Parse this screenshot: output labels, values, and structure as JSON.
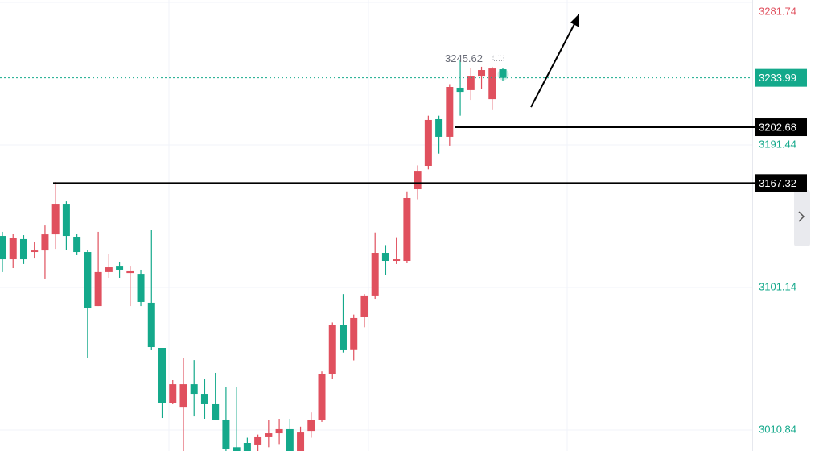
{
  "chart_data": {
    "type": "candlestick",
    "up_color": "#e0505e",
    "down_color": "#14a98b",
    "open": [
      3133.8,
      3119.0,
      3131.8,
      3123.6,
      3124.6,
      3134.8,
      3154.2,
      3133.3,
      3123.6,
      3089.4,
      3110.9,
      3114.9,
      3110.3,
      3109.8,
      3091.5,
      3062.9,
      3027.7,
      3025.6,
      3039.9,
      3033.8,
      3027.2,
      3017.5,
      3000.0,
      3002.7,
      3001.7,
      3006.8,
      3008.8,
      3011.4,
      2996.0,
      3010.3,
      3017.0,
      3046.1,
      3077.2,
      3062.0,
      3082.8,
      3096.1,
      3123.1,
      3118.0,
      3118.0,
      3163.4,
      3178.2,
      3207.8,
      3196.6,
      3227.7,
      3226.2,
      3235.3,
      3220.5,
      3239.4
    ],
    "high": [
      3136.4,
      3135.3,
      3134.3,
      3130.2,
      3140.4,
      3168.0,
      3155.7,
      3135.3,
      3125.1,
      3136.4,
      3122.1,
      3117.5,
      3114.9,
      3112.4,
      3137.4,
      3062.9,
      3042.5,
      3056.3,
      3055.2,
      3043.5,
      3047.1,
      3038.4,
      3038.4,
      3006.0,
      3008.0,
      3017.0,
      3018.0,
      3018.0,
      3013.0,
      3022.0,
      3048.0,
      3079.0,
      3097.0,
      3084.0,
      3097.0,
      3136.0,
      3128.0,
      3133.0,
      3162.0,
      3178.5,
      3210.0,
      3210.0,
      3230.0,
      3245.62,
      3240.0,
      3241.0,
      3241.0,
      3240.0
    ],
    "low": [
      3110.9,
      3113.4,
      3116.0,
      3120.0,
      3106.8,
      3125.6,
      3125.1,
      3121.6,
      3056.3,
      3089.4,
      3107.3,
      3107.3,
      3089.4,
      3089.4,
      3061.9,
      3018.5,
      3027.2,
      2997.6,
      3019.5,
      3018.0,
      3017.0,
      2995.0,
      2990.0,
      2990.0,
      2995.0,
      3000.0,
      3002.0,
      2990.0,
      2990.0,
      3006.0,
      3016.0,
      3043.0,
      3060.0,
      3055.0,
      3076.0,
      3094.0,
      3109.0,
      3116.0,
      3117.0,
      3157.0,
      3176.0,
      3186.0,
      3191.0,
      3210.0,
      3220.0,
      3227.0,
      3214.0,
      3232.0
    ],
    "close": [
      3119.0,
      3132.3,
      3119.0,
      3124.6,
      3134.8,
      3154.2,
      3133.8,
      3123.6,
      3087.9,
      3110.9,
      3113.9,
      3112.4,
      3111.9,
      3092.0,
      3063.4,
      3027.7,
      3039.9,
      3039.9,
      3033.8,
      3027.2,
      3017.5,
      2999.0,
      2992.0,
      2997.0,
      3006.8,
      3008.8,
      3011.4,
      2995.0,
      3009.3,
      3017.0,
      3046.1,
      3077.2,
      3061.9,
      3081.8,
      3096.1,
      3123.1,
      3118.0,
      3119.0,
      3157.8,
      3175.1,
      3207.3,
      3196.6,
      3228.2,
      3225.1,
      3235.3,
      3238.9,
      3239.9,
      3233.99
    ],
    "ylim": [
      2997.6,
      3283.3
    ],
    "yticks": [
      3010.84,
      3101.14,
      3191.44,
      3281.74
    ],
    "grid": true,
    "last_price": 3233.99,
    "levels": [
      3202.68,
      3167.32
    ],
    "high_label": 3245.62
  }
}
